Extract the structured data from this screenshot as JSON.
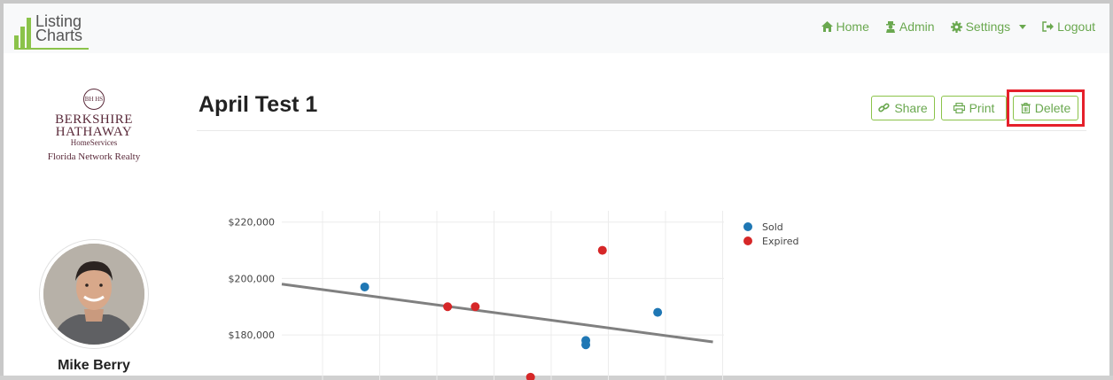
{
  "brand": {
    "line1": "Listing",
    "line2": "Charts"
  },
  "nav": {
    "home": "Home",
    "admin": "Admin",
    "settings": "Settings",
    "logout": "Logout"
  },
  "sidebar": {
    "brokerage": {
      "seal": "BH HS",
      "line1": "BERKSHIRE",
      "line2": "HATHAWAY",
      "line3": "HomeServices",
      "line4": "Florida Network Realty"
    },
    "agent_name": "Mike Berry"
  },
  "main": {
    "title": "April Test 1",
    "buttons": {
      "share": "Share",
      "print": "Print",
      "delete": "Delete"
    }
  },
  "colors": {
    "accent": "#6aa84f",
    "sold": "#1f77b4",
    "expired": "#d62728",
    "trend": "#808080",
    "highlight": "#e5202b"
  },
  "chart_data": {
    "type": "scatter",
    "ylim": [
      164000,
      224000
    ],
    "xlim": [
      0,
      8
    ],
    "yticks": [
      {
        "value": 180000,
        "label": "$180,000"
      },
      {
        "value": 200000,
        "label": "$200,000"
      },
      {
        "value": 220000,
        "label": "$220,000"
      }
    ],
    "series": [
      {
        "name": "Sold",
        "color": "#1f77b4",
        "points": [
          [
            1.5,
            197000
          ],
          [
            5.5,
            178000
          ],
          [
            5.5,
            176500
          ],
          [
            6.8,
            188000
          ]
        ]
      },
      {
        "name": "Expired",
        "color": "#d62728",
        "points": [
          [
            3.0,
            190000
          ],
          [
            3.5,
            190000
          ],
          [
            4.5,
            165000
          ],
          [
            5.8,
            210000
          ]
        ]
      }
    ],
    "trendline": [
      [
        0,
        198000
      ],
      [
        7.8,
        177500
      ]
    ],
    "legend": "top-right"
  }
}
